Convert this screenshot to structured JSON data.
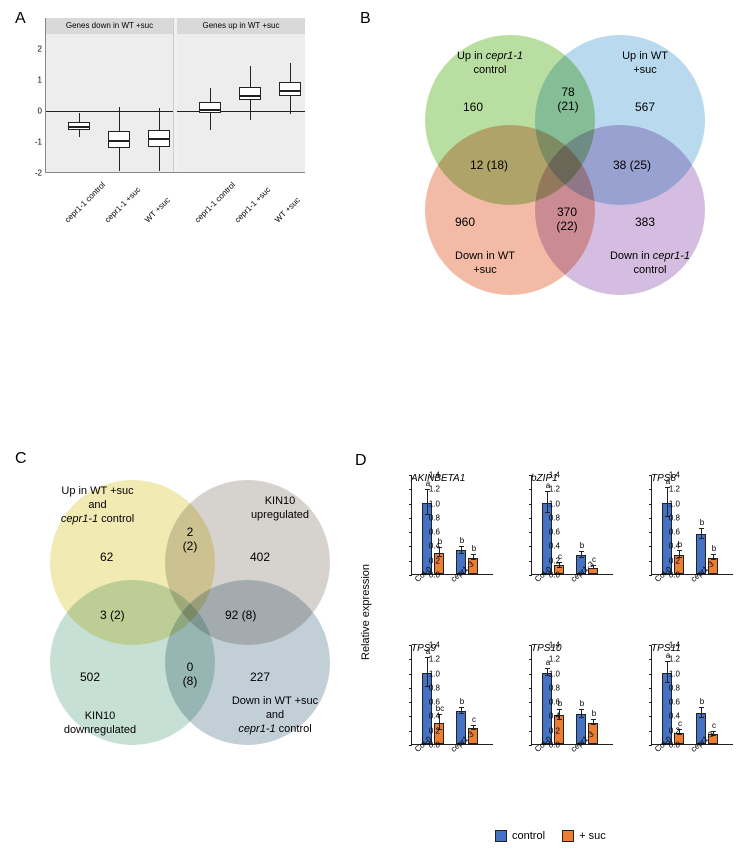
{
  "labels": {
    "A": "A",
    "B": "B",
    "C": "C",
    "D": "D"
  },
  "colors": {
    "control_bar": "#4472c4",
    "suc_bar": "#ed7d31",
    "venn_b_green": "#b9dea1",
    "venn_b_blue": "#b8d9ee",
    "venn_b_red": "#f3bba6",
    "venn_b_purple": "#d4bde0",
    "venn_c_yellow": "#f2eab3",
    "venn_c_grey": "#d6d3cf",
    "venn_c_teal": "#c6e0d5",
    "venn_c_slate": "#c2cfd7",
    "grid_bg": "#ededed",
    "axis": "#222222"
  },
  "panelA": {
    "facets": [
      "Genes down in WT +suc",
      "Genes up in WT +suc"
    ],
    "ylim": [
      -2,
      2.5
    ],
    "yticks": [
      -2,
      -1,
      0,
      1,
      2
    ],
    "xcats": [
      "cepr1-1 control",
      "cepr1-1 +suc",
      "WT +suc"
    ],
    "boxes": {
      "left": [
        {
          "q1": -0.6,
          "med": -0.45,
          "q3": -0.35,
          "lo": -0.85,
          "hi": -0.05
        },
        {
          "q1": -1.2,
          "med": -0.9,
          "q3": -0.65,
          "lo": -1.95,
          "hi": 0.15
        },
        {
          "q1": -1.15,
          "med": -0.85,
          "q3": -0.6,
          "lo": -1.95,
          "hi": 0.1
        }
      ],
      "right": [
        {
          "q1": -0.05,
          "med": 0.12,
          "q3": 0.3,
          "lo": -0.6,
          "hi": 0.75
        },
        {
          "q1": 0.35,
          "med": 0.55,
          "q3": 0.8,
          "lo": -0.3,
          "hi": 1.45
        },
        {
          "q1": 0.5,
          "med": 0.72,
          "q3": 0.95,
          "lo": -0.1,
          "hi": 1.55
        }
      ]
    }
  },
  "panelB": {
    "circles": [
      {
        "label": "Up in <i>cepr1-1</i><br>control",
        "n": "160",
        "color_key": "venn_b_green"
      },
      {
        "label": "Up in WT<br>+suc",
        "n": "567",
        "color_key": "venn_b_blue"
      },
      {
        "label": "Down in WT<br>+suc",
        "n": "960",
        "color_key": "venn_b_red"
      },
      {
        "label": "Down in <i>cepr1-1</i><br>control",
        "n": "383",
        "color_key": "venn_b_purple"
      }
    ],
    "overlaps": {
      "top": "78<br>(21)",
      "left": "12 (18)",
      "right": "38 (25)",
      "bottom": "370<br>(22)"
    }
  },
  "panelC": {
    "circles": [
      {
        "label": "Up in WT +suc<br>and<br><i>cepr1-1</i> control",
        "n": "62",
        "color_key": "venn_c_yellow"
      },
      {
        "label": "KIN10<br>upregulated",
        "n": "402",
        "color_key": "venn_c_grey"
      },
      {
        "label": "KIN10<br>downregulated",
        "n": "502",
        "color_key": "venn_c_teal"
      },
      {
        "label": "Down in WT +suc<br>and<br><i>cepr1-1</i> control",
        "n": "227",
        "color_key": "venn_c_slate"
      }
    ],
    "overlaps": {
      "top": "2<br>(2)",
      "left": "3 (2)",
      "right": "92 (8)",
      "bottom": "0<br>(8)"
    }
  },
  "panelD": {
    "y_title": "Relative expression",
    "ylim": [
      0,
      1.4
    ],
    "yticks": [
      0.0,
      0.2,
      0.4,
      0.6,
      0.8,
      1.0,
      1.2,
      1.4
    ],
    "groups": [
      "Col-0",
      "cepr1-3"
    ],
    "legend": [
      {
        "label": "control",
        "color_key": "control_bar"
      },
      {
        "label": "+ suc",
        "color_key": "suc_bar"
      }
    ],
    "charts": [
      {
        "title": "AKINBETA1",
        "bars": [
          {
            "v": 1.0,
            "err": 0.18,
            "sig": "a",
            "color_key": "control_bar"
          },
          {
            "v": 0.3,
            "err": 0.06,
            "sig": "b",
            "color_key": "suc_bar"
          },
          {
            "v": 0.33,
            "err": 0.05,
            "sig": "b",
            "color_key": "control_bar"
          },
          {
            "v": 0.23,
            "err": 0.04,
            "sig": "b",
            "color_key": "suc_bar"
          }
        ]
      },
      {
        "title": "bZIP1",
        "bars": [
          {
            "v": 1.0,
            "err": 0.15,
            "sig": "a",
            "color_key": "control_bar"
          },
          {
            "v": 0.12,
            "err": 0.03,
            "sig": "c",
            "color_key": "suc_bar"
          },
          {
            "v": 0.27,
            "err": 0.04,
            "sig": "b",
            "color_key": "control_bar"
          },
          {
            "v": 0.09,
            "err": 0.02,
            "sig": "c",
            "color_key": "suc_bar"
          }
        ]
      },
      {
        "title": "TPS8",
        "bars": [
          {
            "v": 1.0,
            "err": 0.2,
            "sig": "a",
            "color_key": "control_bar"
          },
          {
            "v": 0.27,
            "err": 0.05,
            "sig": "b",
            "color_key": "suc_bar"
          },
          {
            "v": 0.56,
            "err": 0.07,
            "sig": "b",
            "color_key": "control_bar"
          },
          {
            "v": 0.23,
            "err": 0.04,
            "sig": "b",
            "color_key": "suc_bar"
          }
        ]
      },
      {
        "title": "TPS9",
        "bars": [
          {
            "v": 1.0,
            "err": 0.2,
            "sig": "a",
            "color_key": "control_bar"
          },
          {
            "v": 0.3,
            "err": 0.1,
            "sig": "bc",
            "color_key": "suc_bar"
          },
          {
            "v": 0.46,
            "err": 0.04,
            "sig": "b",
            "color_key": "control_bar"
          },
          {
            "v": 0.22,
            "err": 0.03,
            "sig": "c",
            "color_key": "suc_bar"
          }
        ]
      },
      {
        "title": "TPS10",
        "bars": [
          {
            "v": 1.0,
            "err": 0.05,
            "sig": "a",
            "color_key": "control_bar"
          },
          {
            "v": 0.4,
            "err": 0.07,
            "sig": "b",
            "color_key": "suc_bar"
          },
          {
            "v": 0.42,
            "err": 0.06,
            "sig": "b",
            "color_key": "control_bar"
          },
          {
            "v": 0.3,
            "err": 0.04,
            "sig": "b",
            "color_key": "suc_bar"
          }
        ]
      },
      {
        "title": "TPS11",
        "bars": [
          {
            "v": 1.0,
            "err": 0.15,
            "sig": "a",
            "color_key": "control_bar"
          },
          {
            "v": 0.16,
            "err": 0.03,
            "sig": "c",
            "color_key": "suc_bar"
          },
          {
            "v": 0.43,
            "err": 0.07,
            "sig": "b",
            "color_key": "control_bar"
          },
          {
            "v": 0.14,
            "err": 0.03,
            "sig": "c",
            "color_key": "suc_bar"
          }
        ]
      }
    ]
  }
}
